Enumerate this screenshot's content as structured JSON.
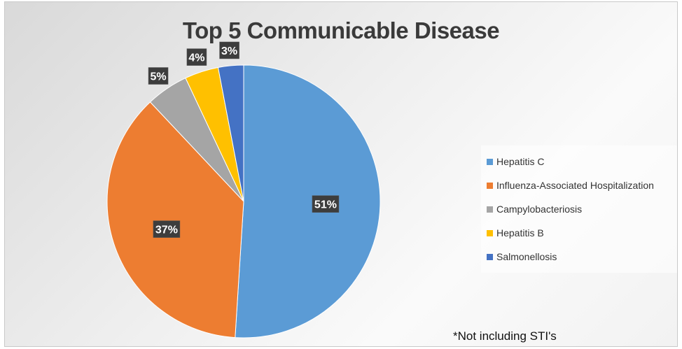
{
  "chart_data": {
    "type": "pie",
    "title": "Top 5 Communicable Disease",
    "categories": [
      "Hepatitis C",
      "Influenza-Associated Hospitalization",
      "Campylobacteriosis",
      "Hepatitis B",
      "Salmonellosis"
    ],
    "values": [
      51,
      37,
      5,
      4,
      3
    ],
    "data_labels": [
      "51%",
      "37%",
      "5%",
      "4%",
      "3%"
    ],
    "colors": [
      "#5b9bd5",
      "#ed7d31",
      "#a5a5a5",
      "#ffc000",
      "#4472c4"
    ],
    "legend_position": "right",
    "footnote": "*Not including STI's"
  }
}
